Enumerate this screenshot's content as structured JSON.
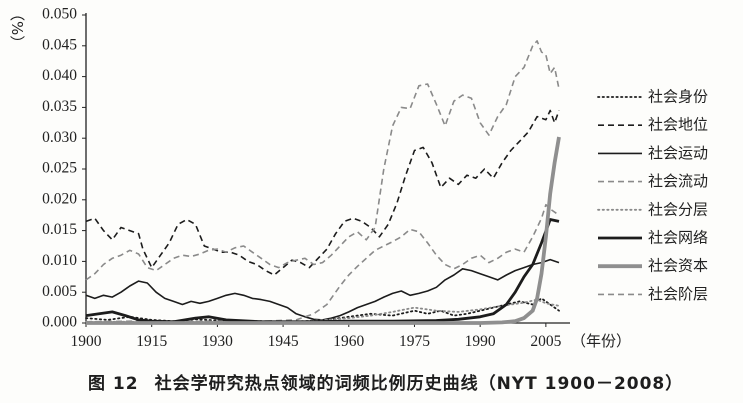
{
  "figure": {
    "caption_label": "图 12",
    "caption_text": "社会学研究热点领域的词频比例历史曲线（NYT 1900－2008）"
  },
  "chart_data": {
    "type": "line",
    "title": "",
    "xlabel": "（年份）",
    "ylabel": "（%）",
    "xlim": [
      1900,
      2008
    ],
    "ylim": [
      0,
      0.05
    ],
    "xticks": [
      "1900",
      "1915",
      "1930",
      "1945",
      "1960",
      "1975",
      "1990",
      "2005"
    ],
    "yticks": [
      "0.000",
      "0.005",
      "0.010",
      "0.015",
      "0.020",
      "0.025",
      "0.030",
      "0.035",
      "0.040",
      "0.045",
      "0.050"
    ],
    "grid": false,
    "legend_position": "right",
    "series": [
      {
        "name": "社会身份",
        "color": "#1c1c1c",
        "line": "dotted",
        "weight": "thin",
        "points": [
          [
            1900,
            0.0008
          ],
          [
            1905,
            0.0005
          ],
          [
            1910,
            0.001
          ],
          [
            1915,
            0.0005
          ],
          [
            1920,
            0.0003
          ],
          [
            1925,
            0.0006
          ],
          [
            1930,
            0.0004
          ],
          [
            1935,
            0.0003
          ],
          [
            1940,
            0.0003
          ],
          [
            1945,
            0.0002
          ],
          [
            1950,
            0.0003
          ],
          [
            1955,
            0.0005
          ],
          [
            1960,
            0.001
          ],
          [
            1965,
            0.0015
          ],
          [
            1970,
            0.0012
          ],
          [
            1975,
            0.002
          ],
          [
            1978,
            0.0015
          ],
          [
            1981,
            0.002
          ],
          [
            1984,
            0.0012
          ],
          [
            1987,
            0.0015
          ],
          [
            1990,
            0.002
          ],
          [
            1993,
            0.0025
          ],
          [
            1996,
            0.003
          ],
          [
            1999,
            0.0035
          ],
          [
            2002,
            0.003
          ],
          [
            2004,
            0.004
          ],
          [
            2006,
            0.003
          ],
          [
            2008,
            0.002
          ]
        ]
      },
      {
        "name": "社会地位",
        "color": "#1c1c1c",
        "line": "dashed",
        "weight": "thin",
        "points": [
          [
            1900,
            0.0165
          ],
          [
            1902,
            0.017
          ],
          [
            1904,
            0.015
          ],
          [
            1906,
            0.0135
          ],
          [
            1908,
            0.0155
          ],
          [
            1910,
            0.015
          ],
          [
            1912,
            0.0145
          ],
          [
            1913,
            0.012
          ],
          [
            1915,
            0.009
          ],
          [
            1917,
            0.011
          ],
          [
            1919,
            0.013
          ],
          [
            1921,
            0.016
          ],
          [
            1923,
            0.0168
          ],
          [
            1925,
            0.016
          ],
          [
            1927,
            0.0125
          ],
          [
            1929,
            0.012
          ],
          [
            1931,
            0.0115
          ],
          [
            1933,
            0.0115
          ],
          [
            1935,
            0.011
          ],
          [
            1937,
            0.01
          ],
          [
            1939,
            0.0095
          ],
          [
            1941,
            0.0085
          ],
          [
            1943,
            0.0078
          ],
          [
            1945,
            0.009
          ],
          [
            1947,
            0.0102
          ],
          [
            1949,
            0.0098
          ],
          [
            1951,
            0.009
          ],
          [
            1953,
            0.0105
          ],
          [
            1955,
            0.012
          ],
          [
            1957,
            0.0145
          ],
          [
            1959,
            0.0165
          ],
          [
            1961,
            0.017
          ],
          [
            1963,
            0.0165
          ],
          [
            1965,
            0.0155
          ],
          [
            1967,
            0.014
          ],
          [
            1969,
            0.016
          ],
          [
            1971,
            0.0195
          ],
          [
            1973,
            0.024
          ],
          [
            1975,
            0.028
          ],
          [
            1977,
            0.0285
          ],
          [
            1979,
            0.026
          ],
          [
            1981,
            0.022
          ],
          [
            1983,
            0.0235
          ],
          [
            1985,
            0.0225
          ],
          [
            1987,
            0.024
          ],
          [
            1989,
            0.0235
          ],
          [
            1991,
            0.025
          ],
          [
            1993,
            0.0235
          ],
          [
            1995,
            0.026
          ],
          [
            1997,
            0.028
          ],
          [
            1999,
            0.0295
          ],
          [
            2001,
            0.031
          ],
          [
            2003,
            0.0335
          ],
          [
            2005,
            0.033
          ],
          [
            2006,
            0.0345
          ],
          [
            2007,
            0.0325
          ],
          [
            2008,
            0.0345
          ]
        ]
      },
      {
        "name": "社会运动",
        "color": "#1c1c1c",
        "line": "solid",
        "weight": "thin",
        "points": [
          [
            1900,
            0.0045
          ],
          [
            1902,
            0.004
          ],
          [
            1904,
            0.0045
          ],
          [
            1906,
            0.0042
          ],
          [
            1908,
            0.005
          ],
          [
            1910,
            0.006
          ],
          [
            1912,
            0.0068
          ],
          [
            1914,
            0.0065
          ],
          [
            1916,
            0.005
          ],
          [
            1918,
            0.004
          ],
          [
            1920,
            0.0035
          ],
          [
            1922,
            0.003
          ],
          [
            1924,
            0.0035
          ],
          [
            1926,
            0.0032
          ],
          [
            1928,
            0.0035
          ],
          [
            1930,
            0.004
          ],
          [
            1932,
            0.0045
          ],
          [
            1934,
            0.0048
          ],
          [
            1936,
            0.0045
          ],
          [
            1938,
            0.004
          ],
          [
            1940,
            0.0038
          ],
          [
            1942,
            0.0035
          ],
          [
            1944,
            0.003
          ],
          [
            1946,
            0.0025
          ],
          [
            1948,
            0.0015
          ],
          [
            1950,
            0.001
          ],
          [
            1952,
            0.0006
          ],
          [
            1954,
            0.0005
          ],
          [
            1956,
            0.0008
          ],
          [
            1958,
            0.0012
          ],
          [
            1960,
            0.0018
          ],
          [
            1962,
            0.0025
          ],
          [
            1964,
            0.003
          ],
          [
            1966,
            0.0035
          ],
          [
            1968,
            0.0042
          ],
          [
            1970,
            0.0048
          ],
          [
            1972,
            0.0052
          ],
          [
            1974,
            0.0045
          ],
          [
            1976,
            0.0048
          ],
          [
            1978,
            0.0052
          ],
          [
            1980,
            0.0058
          ],
          [
            1982,
            0.007
          ],
          [
            1984,
            0.0078
          ],
          [
            1986,
            0.0088
          ],
          [
            1988,
            0.0085
          ],
          [
            1990,
            0.008
          ],
          [
            1992,
            0.0075
          ],
          [
            1994,
            0.007
          ],
          [
            1996,
            0.0078
          ],
          [
            1998,
            0.0085
          ],
          [
            2000,
            0.009
          ],
          [
            2002,
            0.0095
          ],
          [
            2004,
            0.0098
          ],
          [
            2006,
            0.0103
          ],
          [
            2008,
            0.0098
          ]
        ]
      },
      {
        "name": "社会流动",
        "color": "#8a8a8a",
        "line": "dashed",
        "weight": "thin",
        "points": [
          [
            1900,
            0.0002
          ],
          [
            1910,
            0.0003
          ],
          [
            1920,
            0.0002
          ],
          [
            1930,
            0.0003
          ],
          [
            1940,
            0.0003
          ],
          [
            1948,
            0.0005
          ],
          [
            1952,
            0.0015
          ],
          [
            1955,
            0.003
          ],
          [
            1958,
            0.006
          ],
          [
            1960,
            0.0078
          ],
          [
            1962,
            0.0092
          ],
          [
            1964,
            0.0105
          ],
          [
            1966,
            0.0118
          ],
          [
            1968,
            0.0125
          ],
          [
            1970,
            0.0132
          ],
          [
            1972,
            0.014
          ],
          [
            1974,
            0.0152
          ],
          [
            1976,
            0.0148
          ],
          [
            1978,
            0.013
          ],
          [
            1980,
            0.011
          ],
          [
            1982,
            0.0095
          ],
          [
            1984,
            0.0088
          ],
          [
            1986,
            0.0095
          ],
          [
            1988,
            0.0105
          ],
          [
            1990,
            0.011
          ],
          [
            1992,
            0.0098
          ],
          [
            1994,
            0.0105
          ],
          [
            1996,
            0.0115
          ],
          [
            1998,
            0.012
          ],
          [
            2000,
            0.0115
          ],
          [
            2002,
            0.014
          ],
          [
            2004,
            0.017
          ],
          [
            2005,
            0.0192
          ],
          [
            2006,
            0.0185
          ],
          [
            2008,
            0.0175
          ]
        ]
      },
      {
        "name": "社会分层",
        "color": "#8a8a8a",
        "line": "dotted",
        "weight": "thin",
        "points": [
          [
            1900,
            0.0002
          ],
          [
            1920,
            0.0002
          ],
          [
            1940,
            0.0002
          ],
          [
            1950,
            0.0003
          ],
          [
            1955,
            0.0005
          ],
          [
            1960,
            0.0008
          ],
          [
            1965,
            0.0012
          ],
          [
            1970,
            0.0018
          ],
          [
            1975,
            0.0025
          ],
          [
            1980,
            0.002
          ],
          [
            1985,
            0.0018
          ],
          [
            1990,
            0.0022
          ],
          [
            1995,
            0.0028
          ],
          [
            2000,
            0.0033
          ],
          [
            2003,
            0.0038
          ],
          [
            2005,
            0.0032
          ],
          [
            2008,
            0.0028
          ]
        ]
      },
      {
        "name": "社会网络",
        "color": "#1c1c1c",
        "line": "solid",
        "weight": "thick",
        "points": [
          [
            1900,
            0.0012
          ],
          [
            1903,
            0.0015
          ],
          [
            1906,
            0.0018
          ],
          [
            1909,
            0.0012
          ],
          [
            1912,
            0.0005
          ],
          [
            1915,
            0.0003
          ],
          [
            1920,
            0.0002
          ],
          [
            1925,
            0.0008
          ],
          [
            1928,
            0.001
          ],
          [
            1932,
            0.0005
          ],
          [
            1940,
            0.0002
          ],
          [
            1950,
            0.0002
          ],
          [
            1960,
            0.0003
          ],
          [
            1970,
            0.0003
          ],
          [
            1980,
            0.0004
          ],
          [
            1985,
            0.0006
          ],
          [
            1990,
            0.001
          ],
          [
            1993,
            0.0015
          ],
          [
            1996,
            0.003
          ],
          [
            1998,
            0.005
          ],
          [
            2000,
            0.0075
          ],
          [
            2002,
            0.0095
          ],
          [
            2004,
            0.013
          ],
          [
            2006,
            0.0168
          ],
          [
            2008,
            0.0165
          ]
        ]
      },
      {
        "name": "社会资本",
        "color": "#8f8f8f",
        "line": "solid",
        "weight": "thick",
        "points": [
          [
            1900,
            0
          ],
          [
            1950,
            0
          ],
          [
            1990,
            0
          ],
          [
            1995,
            0.0001
          ],
          [
            1998,
            0.0003
          ],
          [
            2000,
            0.0008
          ],
          [
            2002,
            0.002
          ],
          [
            2003,
            0.004
          ],
          [
            2004,
            0.008
          ],
          [
            2005,
            0.014
          ],
          [
            2006,
            0.021
          ],
          [
            2007,
            0.026
          ],
          [
            2008,
            0.0302
          ]
        ]
      },
      {
        "name": "社会阶层",
        "color": "#8a8a8a",
        "line": "dashed",
        "weight": "thin",
        "points": [
          [
            1900,
            0.007
          ],
          [
            1902,
            0.008
          ],
          [
            1904,
            0.0095
          ],
          [
            1906,
            0.0105
          ],
          [
            1908,
            0.011
          ],
          [
            1910,
            0.0118
          ],
          [
            1912,
            0.0112
          ],
          [
            1914,
            0.009
          ],
          [
            1916,
            0.0085
          ],
          [
            1918,
            0.0095
          ],
          [
            1920,
            0.0105
          ],
          [
            1922,
            0.011
          ],
          [
            1924,
            0.0108
          ],
          [
            1926,
            0.0112
          ],
          [
            1928,
            0.0118
          ],
          [
            1930,
            0.012
          ],
          [
            1932,
            0.0115
          ],
          [
            1934,
            0.0122
          ],
          [
            1936,
            0.0125
          ],
          [
            1938,
            0.0115
          ],
          [
            1940,
            0.0105
          ],
          [
            1942,
            0.0095
          ],
          [
            1944,
            0.009
          ],
          [
            1946,
            0.0098
          ],
          [
            1948,
            0.0102
          ],
          [
            1950,
            0.0105
          ],
          [
            1952,
            0.0095
          ],
          [
            1954,
            0.0098
          ],
          [
            1956,
            0.011
          ],
          [
            1958,
            0.0125
          ],
          [
            1960,
            0.014
          ],
          [
            1962,
            0.0148
          ],
          [
            1964,
            0.0135
          ],
          [
            1966,
            0.0155
          ],
          [
            1968,
            0.025
          ],
          [
            1970,
            0.032
          ],
          [
            1972,
            0.035
          ],
          [
            1974,
            0.0348
          ],
          [
            1976,
            0.0385
          ],
          [
            1978,
            0.0388
          ],
          [
            1980,
            0.0355
          ],
          [
            1982,
            0.032
          ],
          [
            1984,
            0.036
          ],
          [
            1986,
            0.037
          ],
          [
            1988,
            0.0365
          ],
          [
            1990,
            0.0325
          ],
          [
            1992,
            0.0305
          ],
          [
            1994,
            0.0335
          ],
          [
            1996,
            0.0355
          ],
          [
            1998,
            0.04
          ],
          [
            2000,
            0.0415
          ],
          [
            2002,
            0.045
          ],
          [
            2003,
            0.0458
          ],
          [
            2004,
            0.044
          ],
          [
            2005,
            0.0435
          ],
          [
            2006,
            0.0405
          ],
          [
            2007,
            0.0415
          ],
          [
            2008,
            0.038
          ]
        ]
      }
    ]
  }
}
